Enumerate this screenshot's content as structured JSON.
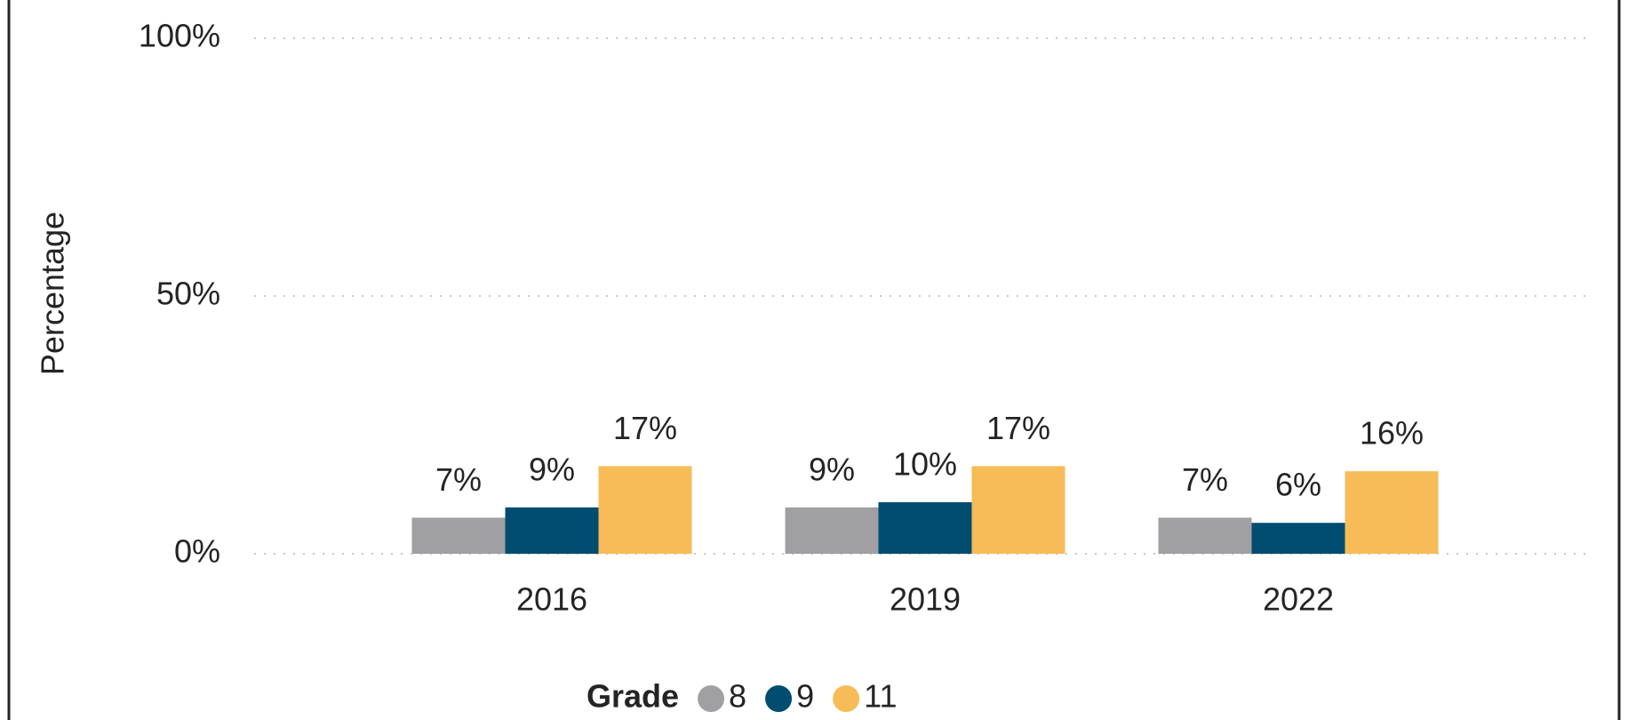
{
  "chart_data": {
    "type": "bar",
    "y_label": "Percentage",
    "legend_title": "Grade",
    "categories": [
      "2016",
      "2019",
      "2022"
    ],
    "series": [
      {
        "name": "8",
        "color": "#a0a0a3",
        "values": [
          7,
          9,
          7
        ],
        "value_labels": [
          "7%",
          "9%",
          "7%"
        ]
      },
      {
        "name": "9",
        "color": "#004d71",
        "values": [
          9,
          10,
          6
        ],
        "value_labels": [
          "9%",
          "10%",
          "6%"
        ]
      },
      {
        "name": "11",
        "color": "#f7bc57",
        "values": [
          17,
          17,
          16
        ],
        "value_labels": [
          "17%",
          "17%",
          "16%"
        ]
      }
    ],
    "ylim": [
      0,
      100
    ],
    "yticks": [
      {
        "value": 0,
        "label": "0%"
      },
      {
        "value": 50,
        "label": "50%"
      },
      {
        "value": 100,
        "label": "100%"
      }
    ],
    "grid": true,
    "legend": "bottom"
  }
}
